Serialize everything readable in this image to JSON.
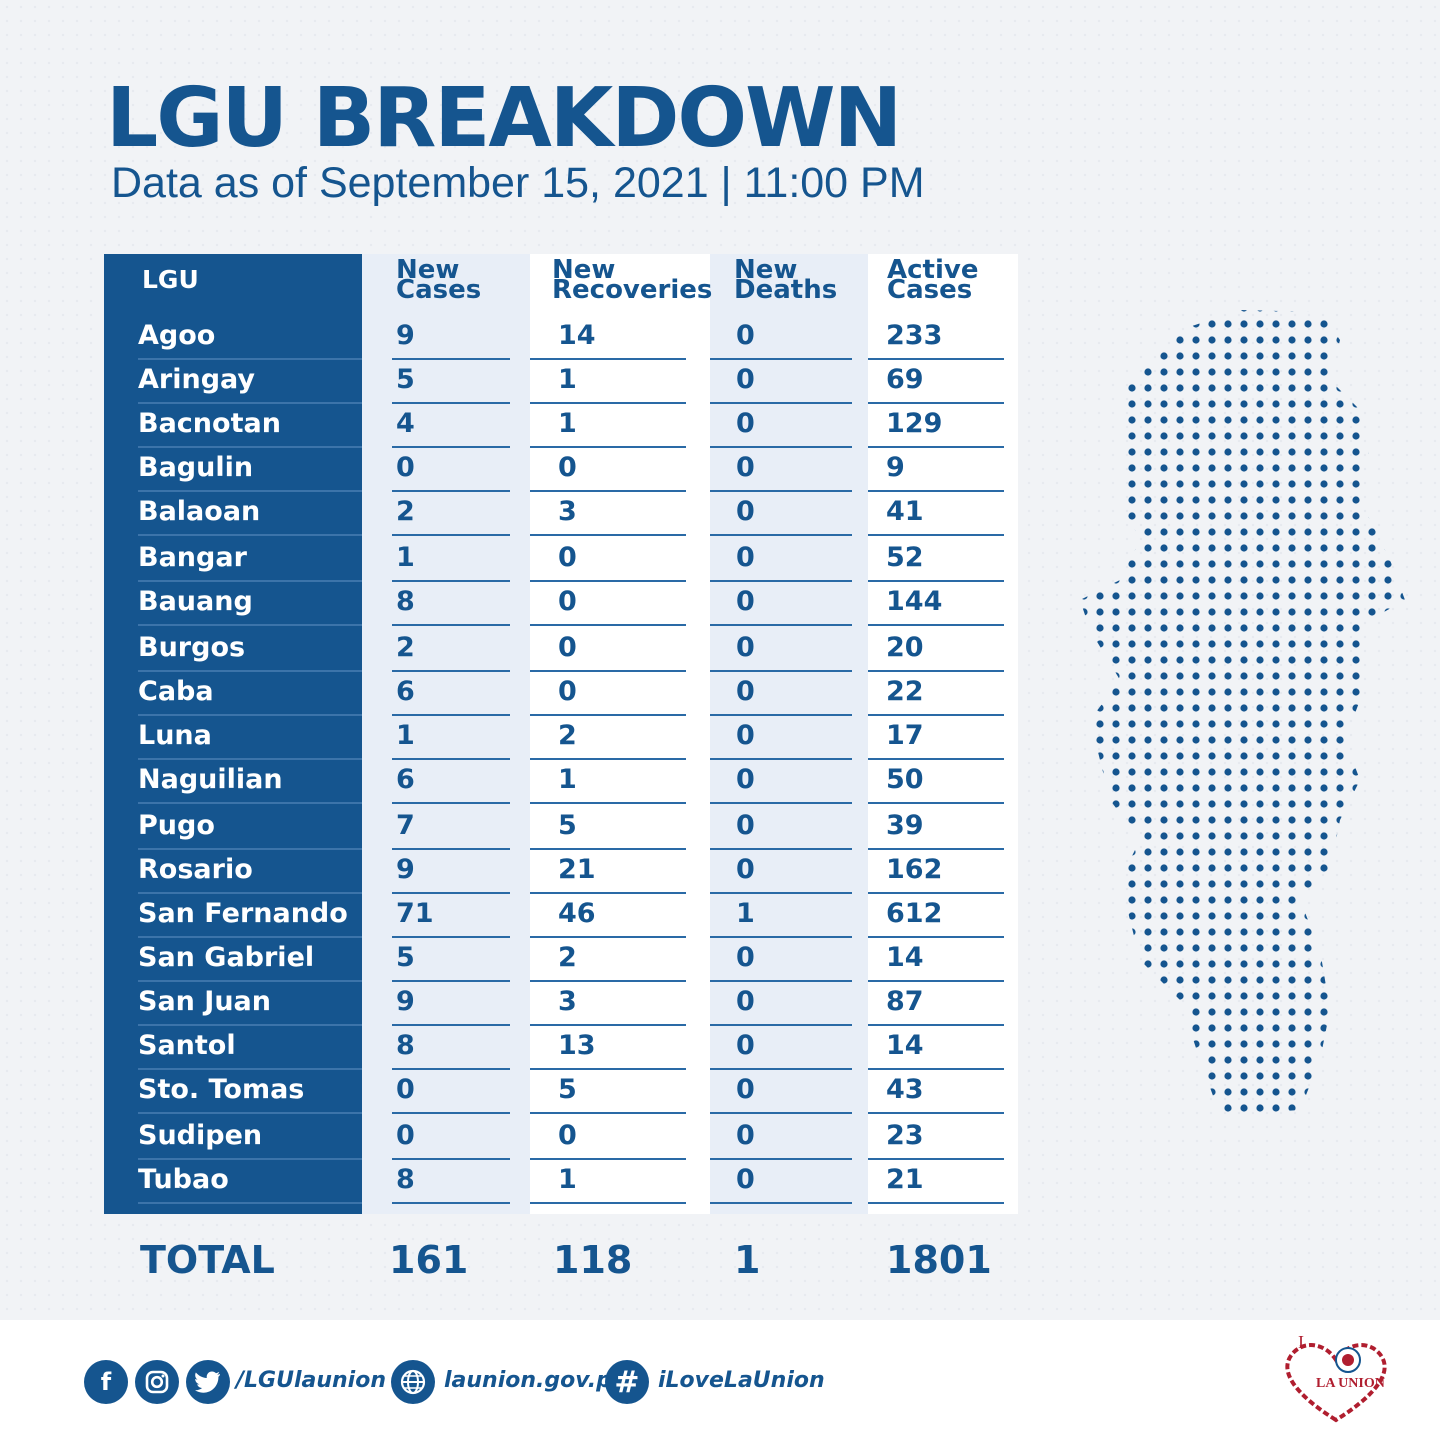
{
  "title": "LGU BREAKDOWN",
  "subtitle": "Data as of September 15, 2021 | 11:00 PM",
  "headers": {
    "lgu": "LGU",
    "new_cases": [
      "New",
      "Cases"
    ],
    "new_recoveries": [
      "New",
      "Recoveries"
    ],
    "new_deaths": [
      "New",
      "Deaths"
    ],
    "active_cases": [
      "Active",
      "Cases"
    ]
  },
  "rows": [
    {
      "lgu": "Agoo",
      "new": "9",
      "rec": "14",
      "dea": "0",
      "act": "233"
    },
    {
      "lgu": "Aringay",
      "new": "5",
      "rec": "1",
      "dea": "0",
      "act": "69"
    },
    {
      "lgu": "Bacnotan",
      "new": "4",
      "rec": "1",
      "dea": "0",
      "act": "129"
    },
    {
      "lgu": "Bagulin",
      "new": "0",
      "rec": "0",
      "dea": "0",
      "act": "9"
    },
    {
      "lgu": "Balaoan",
      "new": "2",
      "rec": "3",
      "dea": "0",
      "act": "41"
    },
    {
      "lgu": "Bangar",
      "new": "1",
      "rec": "0",
      "dea": "0",
      "act": "52"
    },
    {
      "lgu": "Bauang",
      "new": "8",
      "rec": "0",
      "dea": "0",
      "act": "144"
    },
    {
      "lgu": "Burgos",
      "new": "2",
      "rec": "0",
      "dea": "0",
      "act": "20"
    },
    {
      "lgu": "Caba",
      "new": "6",
      "rec": "0",
      "dea": "0",
      "act": "22"
    },
    {
      "lgu": "Luna",
      "new": "1",
      "rec": "2",
      "dea": "0",
      "act": "17"
    },
    {
      "lgu": "Naguilian",
      "new": "6",
      "rec": "1",
      "dea": "0",
      "act": "50"
    },
    {
      "lgu": "Pugo",
      "new": "7",
      "rec": "5",
      "dea": "0",
      "act": "39"
    },
    {
      "lgu": "Rosario",
      "new": "9",
      "rec": "21",
      "dea": "0",
      "act": "162"
    },
    {
      "lgu": "San Fernando",
      "new": "71",
      "rec": "46",
      "dea": "1",
      "act": "612"
    },
    {
      "lgu": "San Gabriel",
      "new": "5",
      "rec": "2",
      "dea": "0",
      "act": "14"
    },
    {
      "lgu": "San Juan",
      "new": "9",
      "rec": "3",
      "dea": "0",
      "act": "87"
    },
    {
      "lgu": "Santol",
      "new": "8",
      "rec": "13",
      "dea": "0",
      "act": "14"
    },
    {
      "lgu": "Sto. Tomas",
      "new": "0",
      "rec": "5",
      "dea": "0",
      "act": "43"
    },
    {
      "lgu": "Sudipen",
      "new": "0",
      "rec": "0",
      "dea": "0",
      "act": "23"
    },
    {
      "lgu": "Tubao",
      "new": "8",
      "rec": "1",
      "dea": "0",
      "act": "21"
    }
  ],
  "totals": {
    "label": "TOTAL",
    "new": "161",
    "rec": "118",
    "dea": "1",
    "act": "1801"
  },
  "footer": {
    "social_handle": "/LGUlaunion",
    "website": "launion.gov.ph",
    "hashtag": "iLoveLaUnion",
    "icons": [
      "facebook-icon",
      "instagram-icon",
      "twitter-icon",
      "globe-icon",
      "hashtag-icon"
    ]
  },
  "logo": {
    "text_i": "I",
    "text_main": "LA UNION"
  },
  "colors": {
    "brand_blue": "#15558f",
    "light_column": "#e8eef7",
    "logo_red": "#b01e2f"
  }
}
